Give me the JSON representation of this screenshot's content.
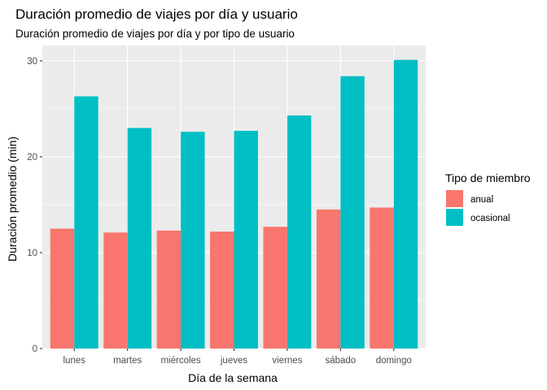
{
  "chart_data": {
    "type": "bar",
    "title": "Duración promedio de viajes por día y usuario",
    "subtitle": "Duración promedio de viajes por día y por tipo de usuario",
    "xlabel": "Día de la semana",
    "ylabel": "Duración promedio (min)",
    "categories": [
      "lunes",
      "martes",
      "miércoles",
      "jueves",
      "viernes",
      "sábado",
      "domingo"
    ],
    "series": [
      {
        "name": "anual",
        "color": "#F8766D",
        "values": [
          12.5,
          12.1,
          12.3,
          12.2,
          12.7,
          14.5,
          14.7
        ]
      },
      {
        "name": "ocasional",
        "color": "#00BFC4",
        "values": [
          26.3,
          23.0,
          22.6,
          22.7,
          24.3,
          28.4,
          30.1
        ]
      }
    ],
    "ylim": [
      0,
      31.6
    ],
    "yticks": [
      0,
      10,
      20,
      30
    ],
    "ytick_labels": [
      "0",
      "10",
      "20",
      "30"
    ],
    "grid": true,
    "legend": {
      "title": "Tipo de miembro",
      "position": "right"
    },
    "panel_background": "#EBEBEB"
  }
}
